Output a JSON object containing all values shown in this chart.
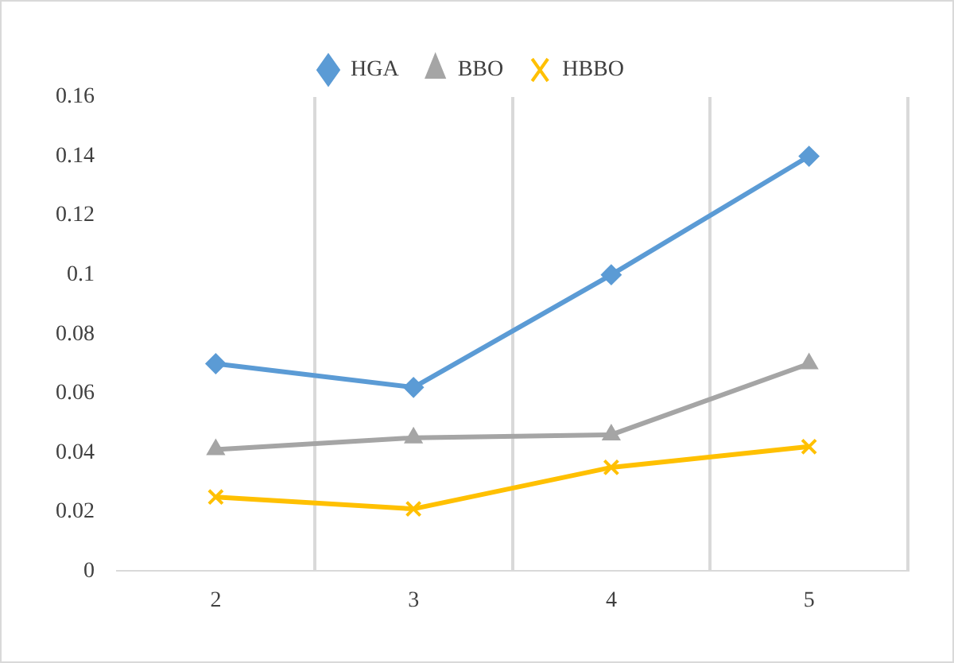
{
  "chart_data": {
    "type": "line",
    "categories": [
      "2",
      "3",
      "4",
      "5"
    ],
    "series": [
      {
        "name": "HGA",
        "color": "#5b9bd5",
        "marker": "diamond",
        "values": [
          0.07,
          0.062,
          0.1,
          0.14
        ]
      },
      {
        "name": "BBO",
        "color": "#a5a5a5",
        "marker": "triangle",
        "values": [
          0.041,
          0.045,
          0.046,
          0.07
        ]
      },
      {
        "name": "HBBO",
        "color": "#ffc000",
        "marker": "cross",
        "values": [
          0.025,
          0.021,
          0.035,
          0.042
        ]
      }
    ],
    "ylim": [
      0,
      0.16
    ],
    "yticks": [
      0,
      0.02,
      0.04,
      0.06,
      0.08,
      0.1,
      0.12,
      0.14,
      0.16
    ],
    "grid": "x",
    "legend": "top"
  }
}
